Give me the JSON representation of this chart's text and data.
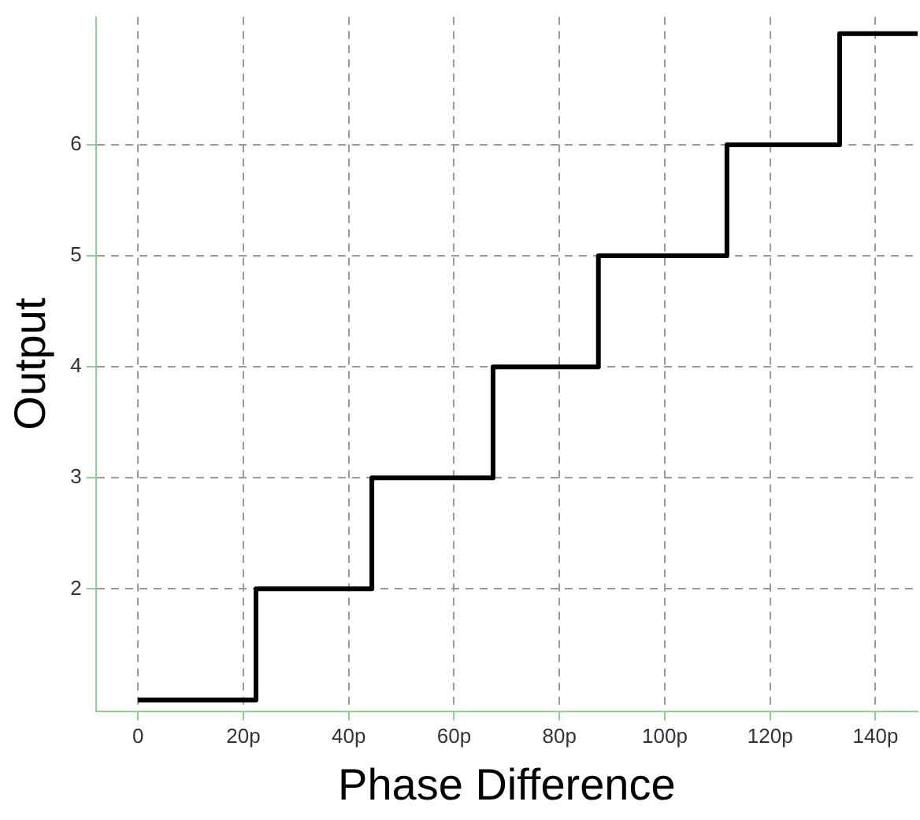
{
  "chart_data": {
    "type": "step",
    "xlabel": "Phase Difference",
    "ylabel": "Output",
    "x": [
      0,
      22.4,
      44.4,
      67.4,
      87.4,
      111.8,
      133.2,
      148
    ],
    "series": [
      {
        "color": "#000000",
        "values": [
          1,
          2,
          3,
          4,
          5,
          6,
          7,
          7
        ]
      }
    ],
    "xlim": [
      -8,
      148
    ],
    "xticks": [
      0,
      {
        "value": 20,
        "label": "20p"
      },
      {
        "value": 40,
        "label": "40p"
      },
      {
        "value": 60,
        "label": "60p"
      },
      {
        "value": 80,
        "label": "80p"
      },
      {
        "value": 100,
        "label": "100p"
      },
      {
        "value": 120,
        "label": "120p"
      },
      {
        "value": 140,
        "label": "140p"
      }
    ],
    "ylim": [
      0.9,
      7.15
    ],
    "yticks": [
      2,
      3,
      4,
      5,
      6
    ],
    "grid": true,
    "legend": false,
    "marker": "none",
    "line_style": "solid"
  }
}
